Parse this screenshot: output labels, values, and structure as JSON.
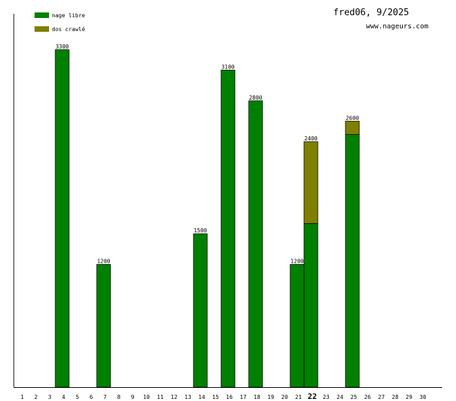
{
  "header": {
    "title": "fred06, 9/2025",
    "site": "www.nageurs.com"
  },
  "chart_data": {
    "type": "bar",
    "stacked": true,
    "x_label_today": "22",
    "categories": [
      "1",
      "2",
      "3",
      "4",
      "5",
      "6",
      "7",
      "8",
      "9",
      "10",
      "11",
      "12",
      "13",
      "14",
      "15",
      "16",
      "17",
      "18",
      "19",
      "20",
      "21",
      "22",
      "23",
      "24",
      "25",
      "26",
      "27",
      "28",
      "29",
      "30"
    ],
    "series": [
      {
        "name": "nage libre",
        "color": "#008000",
        "values": [
          0,
          0,
          0,
          3300,
          0,
          0,
          1200,
          0,
          0,
          0,
          0,
          0,
          0,
          1500,
          0,
          3100,
          0,
          2800,
          0,
          0,
          1200,
          1600,
          0,
          0,
          2470,
          0,
          0,
          0,
          0,
          0
        ]
      },
      {
        "name": "dos crawlé",
        "color": "#808000",
        "values": [
          0,
          0,
          0,
          0,
          0,
          0,
          0,
          0,
          0,
          0,
          0,
          0,
          0,
          0,
          0,
          0,
          0,
          0,
          0,
          0,
          0,
          800,
          0,
          0,
          130,
          0,
          0,
          0,
          0,
          0
        ]
      }
    ],
    "totals": [
      0,
      0,
      0,
      3300,
      0,
      0,
      1200,
      0,
      0,
      0,
      0,
      0,
      0,
      1500,
      0,
      3100,
      0,
      2800,
      0,
      0,
      1200,
      2400,
      0,
      0,
      2600,
      0,
      0,
      0,
      0,
      0
    ],
    "ylim": [
      0,
      3650
    ],
    "grid": false,
    "legend_position": "top-left"
  }
}
